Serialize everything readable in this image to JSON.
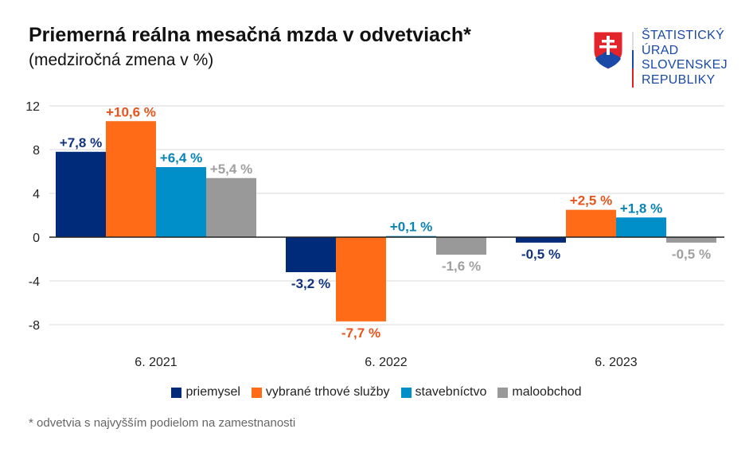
{
  "title": "Priemerná reálna mesačná mzda v odvetviach*",
  "subtitle": "(medziročná zmena v %)",
  "logo": {
    "text_lines": [
      "ŠTATISTICKÝ",
      "ÚRAD",
      "SLOVENSKEJ",
      "REPUBLIKY"
    ]
  },
  "footnote": "* odvetvia s najvyšším podielom na zamestnanosti",
  "chart_data": {
    "type": "bar",
    "title": "Priemerná reálna mesačná mzda v odvetviach*",
    "subtitle": "(medziročná zmena v %)",
    "categories": [
      "6. 2021",
      "6. 2022",
      "6. 2023"
    ],
    "ylim": [
      -10,
      12
    ],
    "yticks": [
      12,
      8,
      4,
      0,
      -4,
      -8
    ],
    "ytick_labels": [
      "12",
      "8",
      "4",
      "0",
      "-4",
      "-8"
    ],
    "grid": true,
    "legend_position": "bottom",
    "series": [
      {
        "name": "priemysel",
        "color": "#002b7a",
        "label_color": "#12337f",
        "values": [
          7.8,
          -3.2,
          -0.5
        ],
        "labels": [
          "+7,8 %",
          "-3,2 %",
          "-0,5 %"
        ]
      },
      {
        "name": "vybrané trhové služby",
        "color": "#ff6b17",
        "label_color": "#e8551c",
        "values": [
          10.6,
          -7.7,
          2.5
        ],
        "labels": [
          "+10,6 %",
          "-7,7 %",
          "+2,5 %"
        ]
      },
      {
        "name": "stavebníctvo",
        "color": "#008fc8",
        "label_color": "#0a84b5",
        "values": [
          6.4,
          0.1,
          1.8
        ],
        "labels": [
          "+6,4 %",
          "+0,1 %",
          "+1,8 %"
        ]
      },
      {
        "name": "maloobchod",
        "color": "#999999",
        "label_color": "#a0a0a0",
        "values": [
          5.4,
          -1.6,
          -0.5
        ],
        "labels": [
          "+5,4 %",
          "-1,6 %",
          "-0,5 %"
        ]
      }
    ]
  }
}
